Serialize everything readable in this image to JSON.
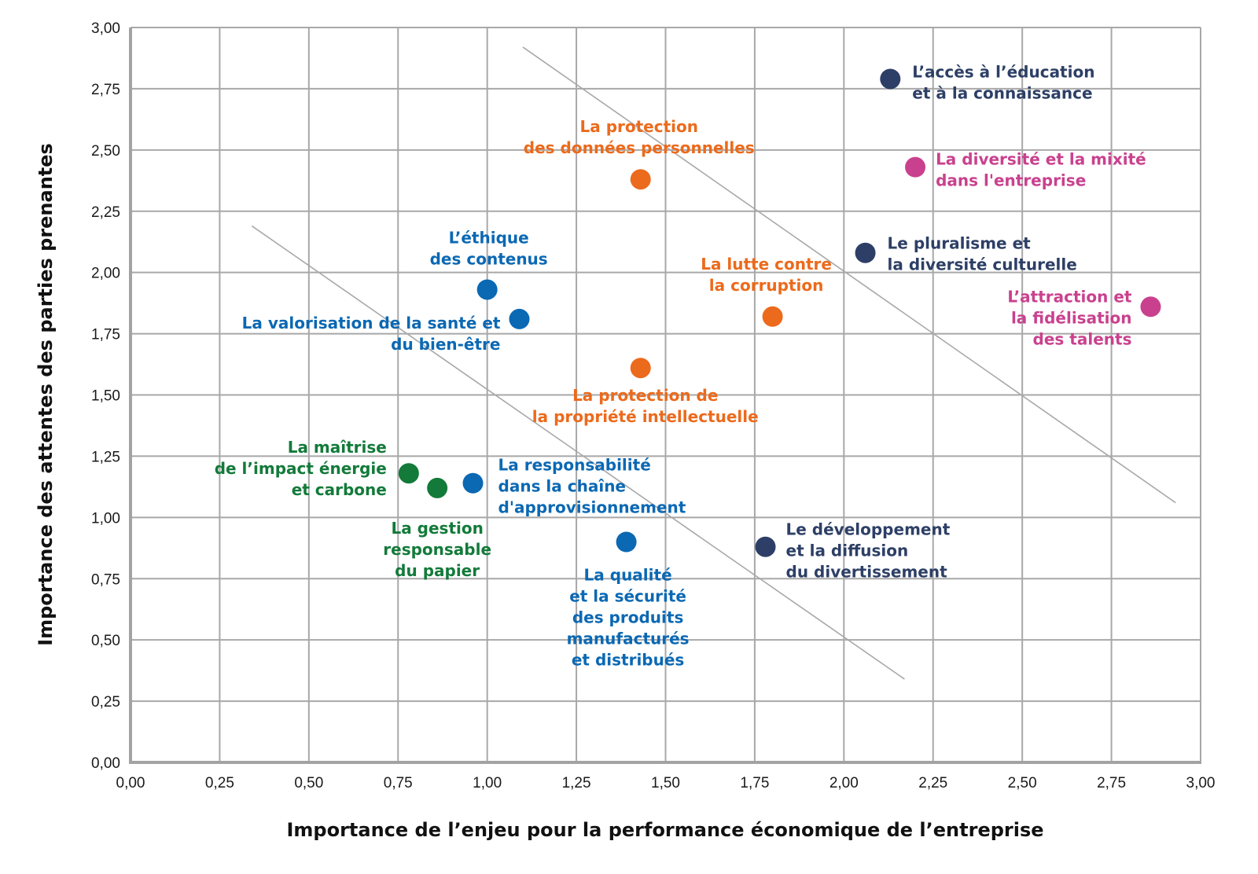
{
  "chart_data": {
    "type": "scatter",
    "xlabel": "Importance de l’enjeu pour la performance économique de l’entreprise",
    "ylabel": "Importance des attentes des parties prenantes",
    "xlim": [
      0,
      3
    ],
    "ylim": [
      0,
      3
    ],
    "grid": true,
    "x_ticks": [
      "0,00",
      "0,25",
      "0,50",
      "0,75",
      "1,00",
      "1,25",
      "1,50",
      "1,75",
      "2,00",
      "2,25",
      "2,50",
      "2,75",
      "3,00"
    ],
    "y_ticks": [
      "0,00",
      "0,25",
      "0,50",
      "0,75",
      "1,00",
      "1,25",
      "1,50",
      "1,75",
      "2,00",
      "2,25",
      "2,50",
      "2,75",
      "3,00"
    ],
    "colors": {
      "navy": "#2d3f66",
      "pink": "#c9418e",
      "orange": "#ec6a1c",
      "blue": "#0b68b3",
      "green": "#137a3a",
      "grid": "#a8a8a8",
      "threshold": "#a8a8a8"
    },
    "threshold_lines": [
      {
        "x1": 0.34,
        "y1": 2.19,
        "x2": 2.17,
        "y2": 0.34
      },
      {
        "x1": 1.1,
        "y1": 2.92,
        "x2": 2.93,
        "y2": 1.06
      }
    ],
    "points": [
      {
        "id": "education",
        "color": "navy",
        "x": 2.13,
        "y": 2.79,
        "anchor": "start",
        "label_lines": [
          "L’accès à l’éducation",
          "et à la connaissance"
        ]
      },
      {
        "id": "diversite-mixite",
        "color": "pink",
        "x": 2.2,
        "y": 2.43,
        "anchor": "start",
        "label_lines": [
          "La diversité et la mixité",
          "dans l'entreprise"
        ]
      },
      {
        "id": "pluralisme",
        "color": "navy",
        "x": 2.06,
        "y": 2.08,
        "anchor": "start",
        "label_lines": [
          "Le pluralisme et",
          "la diversité culturelle"
        ]
      },
      {
        "id": "attraction-talents",
        "color": "pink",
        "x": 2.86,
        "y": 1.86,
        "anchor": "end",
        "label_lines": [
          "L’attraction et",
          "la fidélisation",
          "des talents"
        ]
      },
      {
        "id": "donnees-personnelles",
        "color": "orange",
        "x": 1.43,
        "y": 2.38,
        "anchor": "middle",
        "label_lines": [
          "La protection",
          "des données personnelles"
        ]
      },
      {
        "id": "corruption",
        "color": "orange",
        "x": 1.8,
        "y": 1.82,
        "anchor": "middle",
        "label_lines": [
          "La lutte contre",
          "la corruption"
        ]
      },
      {
        "id": "propriete-intellectuelle",
        "color": "orange",
        "x": 1.43,
        "y": 1.61,
        "anchor": "middle",
        "label_lines": [
          "La protection de",
          "la propriété intellectuelle"
        ]
      },
      {
        "id": "ethique-contenus",
        "color": "blue",
        "x": 1.0,
        "y": 1.93,
        "anchor": "middle",
        "label_lines": [
          "L’éthique",
          "des contenus"
        ]
      },
      {
        "id": "sante-bien-etre",
        "color": "blue",
        "x": 1.09,
        "y": 1.81,
        "anchor": "end",
        "label_lines": [
          "La valorisation de la santé et",
          "du bien-être"
        ]
      },
      {
        "id": "chaine-approvisionnement",
        "color": "blue",
        "x": 0.96,
        "y": 1.14,
        "anchor": "start",
        "label_lines": [
          "La responsabilité",
          "dans la chaîne",
          "d'approvisionnement"
        ]
      },
      {
        "id": "energie-carbone",
        "color": "green",
        "x": 0.78,
        "y": 1.18,
        "anchor": "end",
        "label_lines": [
          "La maîtrise",
          "de l’impact énergie",
          "et carbone"
        ]
      },
      {
        "id": "gestion-papier",
        "color": "green",
        "x": 0.86,
        "y": 1.12,
        "anchor": "middle",
        "label_lines": [
          "La gestion",
          "responsable",
          "du papier"
        ]
      },
      {
        "id": "qualite-securite",
        "color": "blue",
        "x": 1.39,
        "y": 0.9,
        "anchor": "middle",
        "label_lines": [
          "La qualité",
          "et la sécurité",
          "des produits",
          "manufacturés",
          "et distribués"
        ]
      },
      {
        "id": "divertissement",
        "color": "navy",
        "x": 1.78,
        "y": 0.88,
        "anchor": "start",
        "label_lines": [
          "Le développement",
          "et la diffusion",
          "du divertissement"
        ]
      }
    ]
  }
}
